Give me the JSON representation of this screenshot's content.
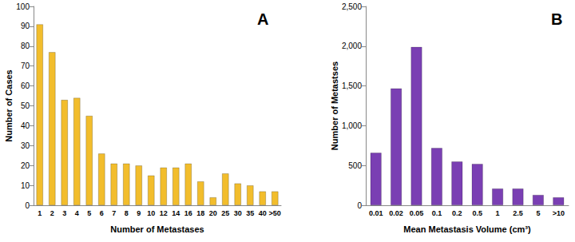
{
  "chart_data": [
    {
      "type": "bar",
      "annotation": "A",
      "x_label": "Number of Metastases",
      "y_label": "Number of Cases",
      "categories": [
        "1",
        "2",
        "3",
        "4",
        "5",
        "6",
        "7",
        "8",
        "9",
        "10",
        "12",
        "14",
        "16",
        "18",
        "20",
        "25",
        "30",
        "35",
        "40",
        ">50"
      ],
      "values": [
        91,
        77,
        53,
        54,
        45,
        26,
        21,
        21,
        20,
        15,
        19,
        19,
        21,
        12,
        4,
        16,
        11,
        10,
        7,
        7
      ],
      "color": "#f2bd2c",
      "ylim": [
        0,
        100
      ],
      "yticks": [
        0,
        10,
        20,
        30,
        40,
        50,
        60,
        70,
        80,
        90,
        100
      ],
      "grid": false
    },
    {
      "type": "bar",
      "annotation": "B",
      "x_label": "Mean Metastasis Volume (cm³)",
      "y_label": "Number of Metastses",
      "categories": [
        "0.01",
        "0.02",
        "0.05",
        "0.1",
        "0.2",
        "0.5",
        "1",
        "2.5",
        "5",
        ">10"
      ],
      "values": [
        660,
        1470,
        1990,
        720,
        550,
        520,
        210,
        210,
        130,
        100
      ],
      "color": "#7a3fb3",
      "ylim": [
        0,
        2500
      ],
      "yticks": [
        0,
        500,
        1000,
        1500,
        2000,
        2500
      ],
      "grid": false
    }
  ]
}
